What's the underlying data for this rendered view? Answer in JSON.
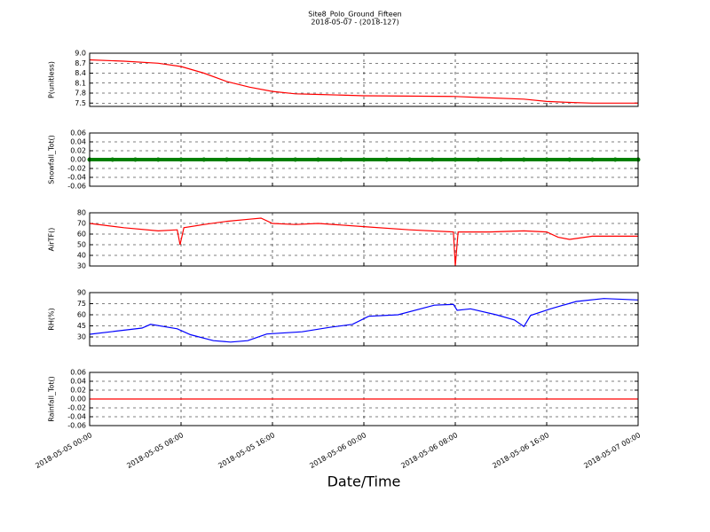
{
  "title": "Site8_Polo_Ground_Fifteen",
  "subtitle": "2018-05-07 - (2018-127)",
  "xlabel": "Date/Time",
  "xlim": [
    "2018-05-05 00:00",
    "2018-05-07 00:00"
  ],
  "xticks": [
    "2018-05-05 00:00",
    "2018-05-05 08:00",
    "2018-05-05 16:00",
    "2018-05-06 00:00",
    "2018-05-06 08:00",
    "2018-05-06 16:00",
    "2018-05-07 00:00"
  ],
  "grid": true,
  "chart_data": [
    {
      "type": "line",
      "ylabel": "P(unitless)",
      "ylim": [
        7.4,
        9.0
      ],
      "yticks": [
        7.5,
        7.8,
        8.1,
        8.4,
        8.7,
        {
          "value": 9,
          "label": "9.0"
        }
      ],
      "x": [
        "2018-05-05 00:00",
        "2018-05-05 03:00",
        "2018-05-05 06:00",
        "2018-05-05 08:00",
        "2018-05-05 10:00",
        "2018-05-05 12:00",
        "2018-05-05 14:00",
        "2018-05-05 16:00",
        "2018-05-05 18:00",
        "2018-05-05 20:00",
        "2018-05-06 00:00",
        "2018-05-06 08:00",
        "2018-05-06 10:00",
        "2018-05-06 14:00",
        "2018-05-06 16:00",
        "2018-05-06 18:00",
        "2018-05-06 20:00",
        "2018-05-07 00:00"
      ],
      "values": [
        8.8,
        8.76,
        8.7,
        8.6,
        8.4,
        8.15,
        7.98,
        7.85,
        7.78,
        7.76,
        7.72,
        7.7,
        7.67,
        7.62,
        7.55,
        7.52,
        7.5,
        7.5
      ],
      "color": "#ff0000"
    },
    {
      "type": "scatter",
      "ylabel": "Snowfall_Tot()",
      "ylim": [
        -0.06,
        0.06
      ],
      "yticks": [
        -0.06,
        -0.04,
        -0.02,
        {
          "value": 0,
          "label": "0.00"
        },
        0.02,
        0.04,
        0.06
      ],
      "x": [
        "2018-05-05 00:00",
        "2018-05-05 02:00",
        "2018-05-05 04:00",
        "2018-05-05 06:00",
        "2018-05-05 08:00",
        "2018-05-05 10:00",
        "2018-05-05 12:00",
        "2018-05-05 14:00",
        "2018-05-05 16:00",
        "2018-05-05 18:00",
        "2018-05-05 20:00",
        "2018-05-05 22:00",
        "2018-05-06 00:00",
        "2018-05-06 02:00",
        "2018-05-06 04:00",
        "2018-05-06 06:00",
        "2018-05-06 08:00",
        "2018-05-06 10:00",
        "2018-05-06 12:00",
        "2018-05-06 14:00",
        "2018-05-06 16:00",
        "2018-05-06 18:00",
        "2018-05-06 20:00",
        "2018-05-06 22:00",
        "2018-05-07 00:00"
      ],
      "values": [
        0,
        0,
        0,
        0,
        0,
        0,
        0,
        0,
        0,
        0,
        0,
        0,
        0,
        0,
        0,
        0,
        0,
        0,
        0,
        0,
        0,
        0,
        0,
        0,
        0
      ],
      "color": "#007f00"
    },
    {
      "type": "line",
      "ylabel": "AirTF()",
      "ylim": [
        30,
        80
      ],
      "yticks": [
        30,
        40,
        50,
        60,
        70,
        80
      ],
      "x": [
        "2018-05-05 00:00",
        "2018-05-05 03:00",
        "2018-05-05 06:00",
        "2018-05-05 07:40",
        "2018-05-05 07:55",
        "2018-05-05 08:15",
        "2018-05-05 10:00",
        "2018-05-05 12:00",
        "2018-05-05 14:00",
        "2018-05-05 15:00",
        "2018-05-05 16:00",
        "2018-05-05 18:00",
        "2018-05-05 20:00",
        "2018-05-06 00:00",
        "2018-05-06 04:00",
        "2018-05-06 07:50",
        "2018-05-06 08:00",
        "2018-05-06 08:15",
        "2018-05-06 11:00",
        "2018-05-06 14:00",
        "2018-05-06 16:00",
        "2018-05-06 17:00",
        "2018-05-06 18:00",
        "2018-05-06 20:00",
        "2018-05-07 00:00"
      ],
      "values": [
        70,
        66,
        63,
        64,
        50,
        66,
        69,
        72,
        74,
        75,
        70,
        69,
        70,
        67,
        64,
        62,
        30,
        62,
        62,
        63,
        62,
        57,
        55,
        58,
        58
      ],
      "color": "#ff0000"
    },
    {
      "type": "line",
      "ylabel": "RH(%)",
      "ylim": [
        18,
        90
      ],
      "yticks": [
        30,
        45,
        60,
        75,
        90
      ],
      "x": [
        "2018-05-05 00:00",
        "2018-05-05 04:35",
        "2018-05-05 05:20",
        "2018-05-05 07:40",
        "2018-05-05 08:50",
        "2018-05-05 10:50",
        "2018-05-05 12:20",
        "2018-05-05 13:50",
        "2018-05-05 15:30",
        "2018-05-05 18:35",
        "2018-05-05 21:00",
        "2018-05-05 23:00",
        "2018-05-06 00:25",
        "2018-05-06 03:00",
        "2018-05-06 06:10",
        "2018-05-06 07:50",
        "2018-05-06 08:10",
        "2018-05-06 09:20",
        "2018-05-06 11:35",
        "2018-05-06 13:10",
        "2018-05-06 14:00",
        "2018-05-06 14:35",
        "2018-05-06 16:20",
        "2018-05-06 18:35",
        "2018-05-06 21:00",
        "2018-05-07 00:00"
      ],
      "values": [
        33.6,
        42,
        47,
        41,
        33,
        25,
        23,
        25,
        34,
        37,
        43,
        47,
        58,
        60,
        73,
        74,
        66,
        68,
        60,
        53,
        44,
        59,
        68,
        78,
        82,
        80
      ],
      "color": "#0000ff"
    },
    {
      "type": "line",
      "ylabel": "Rainfall_Tot()",
      "ylim": [
        -0.06,
        0.06
      ],
      "yticks": [
        -0.06,
        -0.04,
        -0.02,
        {
          "value": 0,
          "label": "0.00"
        },
        0.02,
        0.04,
        0.06
      ],
      "x": [
        "2018-05-05 00:00",
        "2018-05-07 00:00"
      ],
      "values": [
        0,
        0
      ],
      "color": "#ff0000"
    }
  ]
}
